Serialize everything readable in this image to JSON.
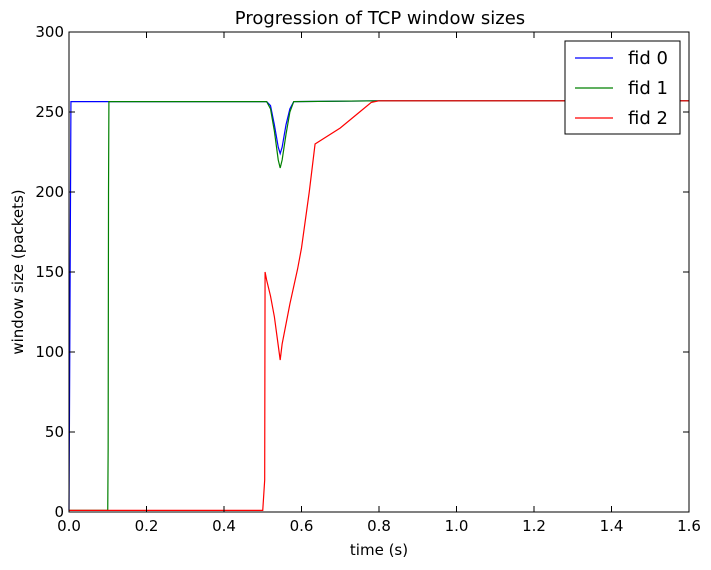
{
  "chart_data": {
    "type": "line",
    "title": "Progression of TCP window sizes",
    "xlabel": "time (s)",
    "ylabel": "window size (packets)",
    "xlim": [
      0.0,
      1.6
    ],
    "ylim": [
      0,
      300
    ],
    "xticks": [
      "0.0",
      "0.2",
      "0.4",
      "0.6",
      "0.8",
      "1.0",
      "1.2",
      "1.4",
      "1.6"
    ],
    "yticks": [
      "0",
      "50",
      "100",
      "150",
      "200",
      "250",
      "300"
    ],
    "legend_position": "top-right",
    "grid": false,
    "series": [
      {
        "name": "fid 0",
        "color": "#0000ff",
        "x": [
          0.0,
          0.002,
          0.005,
          0.51,
          0.52,
          0.53,
          0.54,
          0.545,
          0.55,
          0.56,
          0.57,
          0.58,
          0.8,
          1.6
        ],
        "y": [
          1,
          100,
          256.5,
          256.5,
          254,
          242,
          228,
          224,
          228,
          242,
          252,
          256.5,
          257,
          257
        ]
      },
      {
        "name": "fid 1",
        "color": "#008000",
        "x": [
          0.0,
          0.1,
          0.101,
          0.102,
          0.103,
          0.51,
          0.52,
          0.53,
          0.54,
          0.545,
          0.55,
          0.56,
          0.57,
          0.58,
          0.8,
          1.6
        ],
        "y": [
          1,
          1,
          40,
          200,
          256.5,
          256.5,
          252,
          238,
          220,
          215,
          220,
          236,
          250,
          256.5,
          257,
          257
        ]
      },
      {
        "name": "fid 2",
        "color": "#ff0000",
        "x": [
          0.0,
          0.5,
          0.505,
          0.506,
          0.51,
          0.52,
          0.53,
          0.545,
          0.55,
          0.57,
          0.59,
          0.6,
          0.62,
          0.635,
          0.7,
          0.75,
          0.78,
          0.8,
          1.0,
          1.2,
          1.6
        ],
        "y": [
          1,
          1,
          20,
          150,
          145,
          135,
          122,
          95,
          105,
          130,
          152,
          165,
          200,
          230,
          240,
          250,
          256,
          257,
          257,
          257,
          257
        ]
      }
    ]
  }
}
